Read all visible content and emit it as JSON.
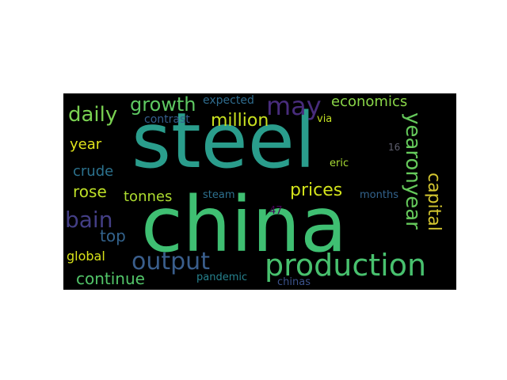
{
  "wordcloud": {
    "background": "#000000",
    "words": {
      "steel": {
        "text": "steel",
        "color": "#2a9d8c"
      },
      "china": {
        "text": "china",
        "color": "#3fbf72"
      },
      "production": {
        "text": "production",
        "color": "#48c16e"
      },
      "output": {
        "text": "output",
        "color": "#3a5e8c"
      },
      "may": {
        "text": "may",
        "color": "#482c7c"
      },
      "yearonyear": {
        "text": "yearonyear",
        "color": "#65c95b"
      },
      "capital": {
        "text": "capital",
        "color": "#d4c630"
      },
      "bain": {
        "text": "bain",
        "color": "#433e85"
      },
      "growth": {
        "text": "growth",
        "color": "#5ec962"
      },
      "daily": {
        "text": "daily",
        "color": "#7ad151"
      },
      "million": {
        "text": "million",
        "color": "#c8e020"
      },
      "prices": {
        "text": "prices",
        "color": "#d2e21b"
      },
      "economics": {
        "text": "economics",
        "color": "#89d548"
      },
      "rose": {
        "text": "rose",
        "color": "#bddf26"
      },
      "year": {
        "text": "year",
        "color": "#e0e31b"
      },
      "top": {
        "text": "top",
        "color": "#33638d"
      },
      "crude": {
        "text": "crude",
        "color": "#2c728e"
      },
      "tonnes": {
        "text": "tonnes",
        "color": "#addc30"
      },
      "continue": {
        "text": "continue",
        "color": "#52c569"
      },
      "global": {
        "text": "global",
        "color": "#d8e219"
      },
      "expected": {
        "text": "expected",
        "color": "#2f6c8e"
      },
      "contrast": {
        "text": "contrast",
        "color": "#355e8d"
      },
      "via": {
        "text": "via",
        "color": "#c2df23"
      },
      "16": {
        "text": "16",
        "color": "#5e5f6e"
      },
      "eric": {
        "text": "eric",
        "color": "#a8db34"
      },
      "steam": {
        "text": "steam",
        "color": "#2d708e"
      },
      "months": {
        "text": "months",
        "color": "#33638d"
      },
      "47": {
        "text": "47",
        "color": "#440154"
      },
      "pandemic": {
        "text": "pandemic",
        "color": "#26828e"
      },
      "chinas": {
        "text": "chinas",
        "color": "#3b528b"
      }
    }
  }
}
